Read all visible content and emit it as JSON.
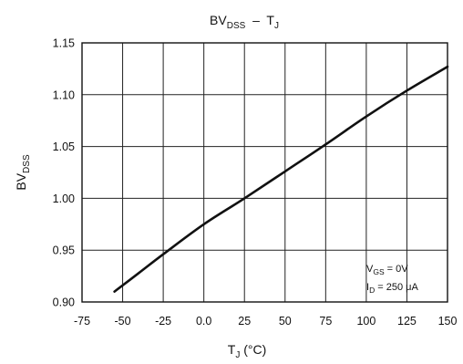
{
  "chart_data": {
    "type": "line",
    "title": {
      "main": "BV",
      "main_sub": "DSS",
      "sep": "  –  ",
      "var": "T",
      "var_sub": "J"
    },
    "xlabel": {
      "main": "T",
      "sub": "J",
      "unit": " (°C)"
    },
    "ylabel": {
      "main": "BV",
      "sub": "DSS"
    },
    "xlim": [
      -75,
      150
    ],
    "ylim": [
      0.9,
      1.15
    ],
    "xticks": [
      "-75",
      "-50",
      "-25",
      "0.0",
      "25",
      "50",
      "75",
      "100",
      "125",
      "150"
    ],
    "yticks": [
      "0.90",
      "0.95",
      "1.00",
      "1.05",
      "1.10",
      "1.15"
    ],
    "grid": true,
    "series": [
      {
        "x": [
          -55,
          -40,
          -25,
          0,
          25,
          50,
          75,
          100,
          125,
          150
        ],
        "y": [
          0.91,
          0.928,
          0.946,
          0.975,
          1.0,
          1.026,
          1.052,
          1.079,
          1.104,
          1.127
        ]
      }
    ],
    "annotations": [
      {
        "main": "V",
        "sub": "GS",
        "rest": " = 0V"
      },
      {
        "main": "I",
        "sub": "D",
        "rest": " = 250 μA"
      }
    ]
  }
}
